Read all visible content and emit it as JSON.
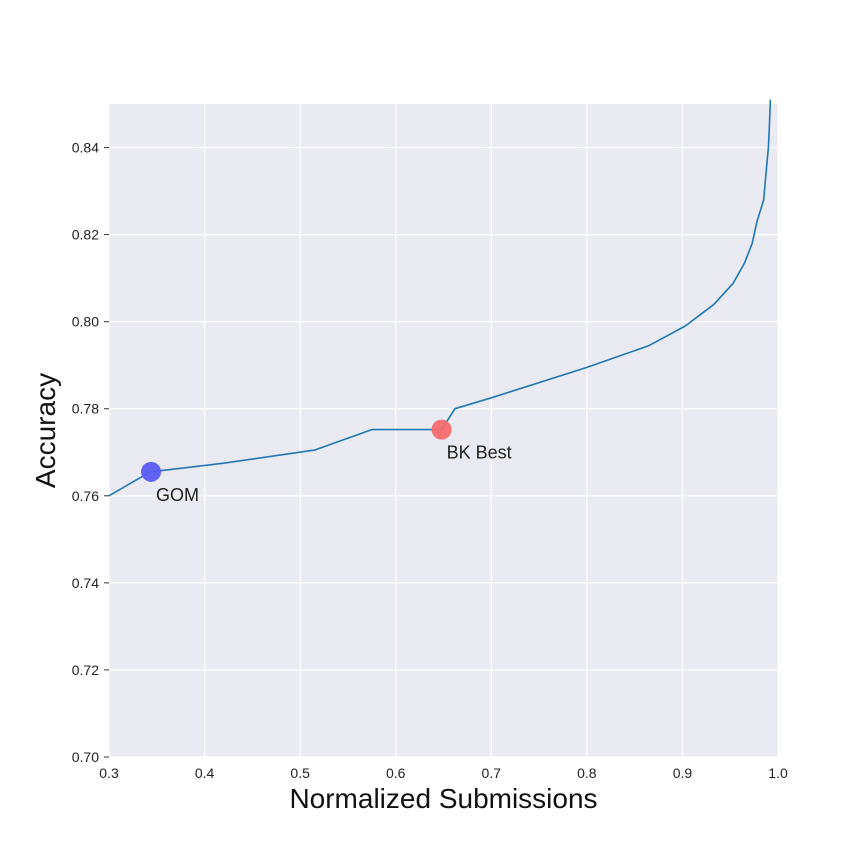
{
  "chart_data": {
    "type": "line",
    "xlabel": "Normalized Submissions",
    "ylabel": "Accuracy",
    "xlim": [
      0.3,
      1.0
    ],
    "ylim": [
      0.7,
      0.85
    ],
    "x_ticks": [
      0.3,
      0.4,
      0.5,
      0.6,
      0.7,
      0.8,
      0.9,
      1.0
    ],
    "x_tick_labels": [
      "0.3",
      "0.4",
      "0.5",
      "0.6",
      "0.7",
      "0.8",
      "0.9",
      "1.0"
    ],
    "y_ticks": [
      0.7,
      0.72,
      0.74,
      0.76,
      0.78,
      0.8,
      0.82,
      0.84
    ],
    "y_tick_labels": [
      "0.70",
      "0.72",
      "0.74",
      "0.76",
      "0.78",
      "0.80",
      "0.82",
      "0.84"
    ],
    "grid": true,
    "background_color": "#eaeaf2",
    "grid_color": "#ffffff",
    "series": [
      {
        "color": "#1f77b4",
        "x": [
          0.3,
          0.343,
          0.42,
          0.515,
          0.575,
          0.648,
          0.662,
          0.7,
          0.8,
          0.865,
          0.903,
          0.933,
          0.953,
          0.965,
          0.973,
          0.978,
          0.985,
          0.987,
          0.99,
          0.991,
          0.992
        ],
        "y": [
          0.76,
          0.7655,
          0.7675,
          0.7705,
          0.7752,
          0.7752,
          0.78,
          0.7825,
          0.7895,
          0.7945,
          0.799,
          0.804,
          0.8088,
          0.8135,
          0.818,
          0.823,
          0.828,
          0.833,
          0.84,
          0.845,
          0.851
        ]
      }
    ],
    "annotations": [
      {
        "label": "GOM",
        "x": 0.344,
        "y": 0.7655,
        "color": "#5b5bf6"
      },
      {
        "label": "BK Best",
        "x": 0.648,
        "y": 0.7752,
        "color": "#f46b6b"
      }
    ]
  }
}
